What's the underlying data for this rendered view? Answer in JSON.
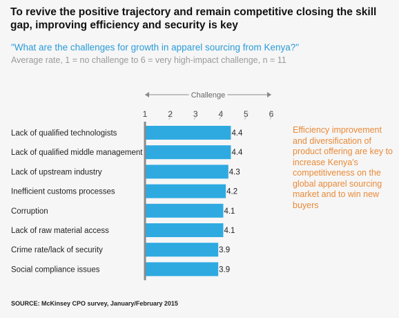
{
  "header": {
    "title": "To revive the positive trajectory and remain competitive closing the skill gap, improving efficiency and security is key",
    "question": "\"What are the challenges for growth in apparel sourcing from Kenya?\"",
    "subtitle": "Average rate, 1 = no challenge to 6 = very high-impact challenge, n = 11"
  },
  "callout": "Efficiency improvement and diversification of product offering are key to increase Kenya's competitiveness on the global apparel sourcing market and to win new buyers",
  "source": "SOURCE: McKinsey CPO survey, January/February 2015",
  "colors": {
    "bar": "#2eaae1",
    "axis": "#8a8a8a",
    "callout": "#e98a38",
    "question": "#2a9bd8"
  },
  "chart_data": {
    "type": "bar",
    "orientation": "horizontal",
    "axis_label": "Challenge",
    "xlim": [
      1,
      6
    ],
    "ticks": [
      "1",
      "2",
      "3",
      "4",
      "5",
      "6"
    ],
    "categories": [
      "Lack of qualified technologists",
      "Lack of qualified middle management",
      "Lack of upstream industry",
      "Inefficient customs processes",
      "Corruption",
      "Lack of raw material access",
      "Crime rate/lack of security",
      "Social compliance issues"
    ],
    "values": [
      4.4,
      4.4,
      4.3,
      4.2,
      4.1,
      4.1,
      3.9,
      3.9
    ],
    "value_labels": [
      "4.4",
      "4.4",
      "4.3",
      "4.2",
      "4.1",
      "4.1",
      "3.9",
      "3.9"
    ]
  }
}
